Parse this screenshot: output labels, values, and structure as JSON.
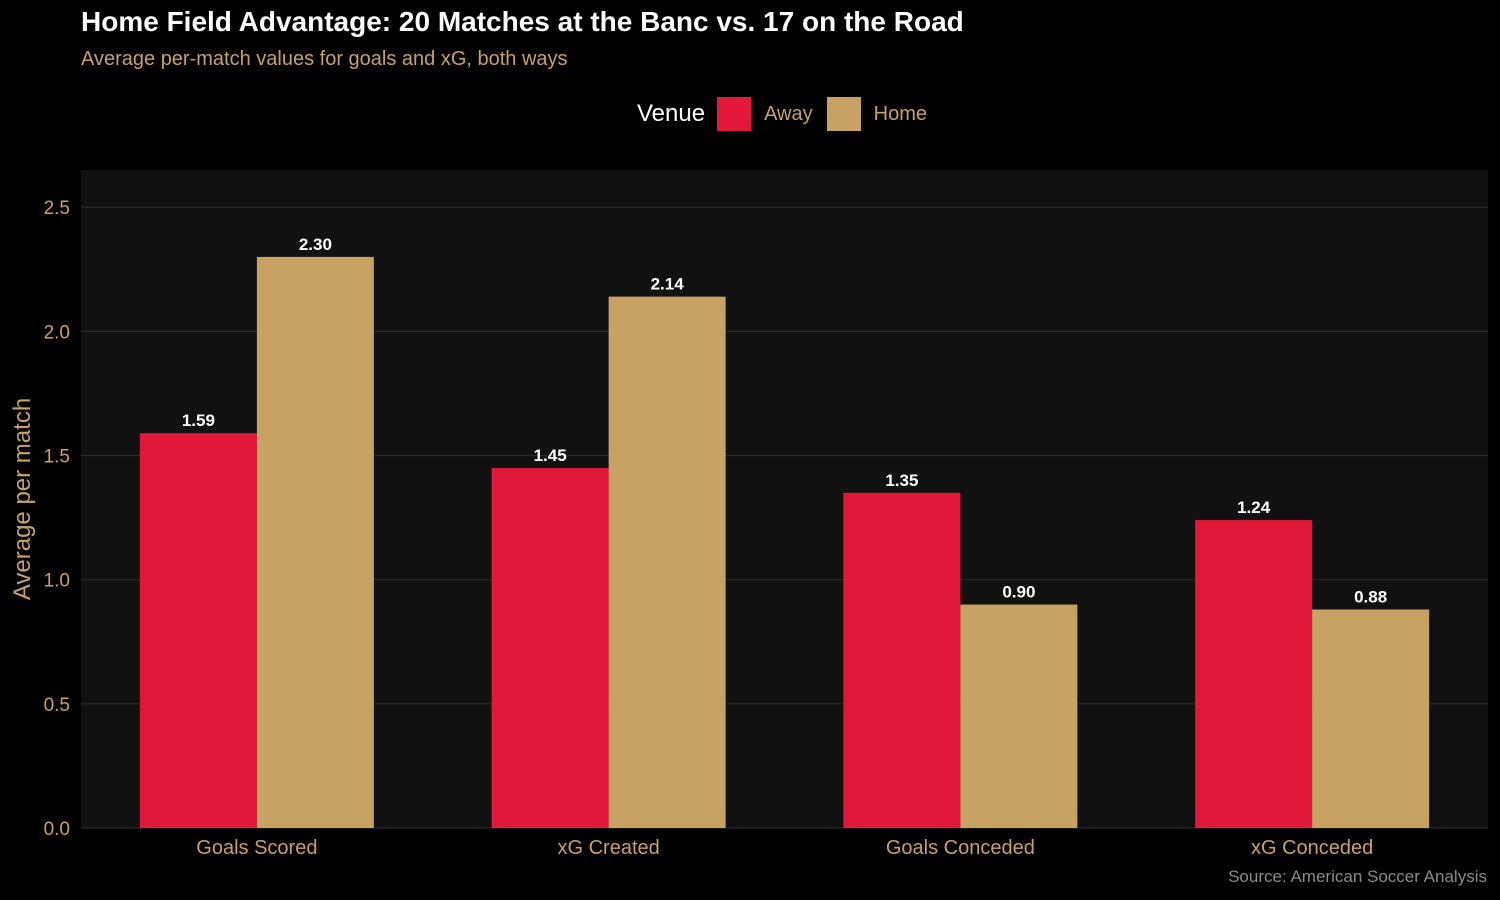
{
  "colors": {
    "background": "#000000",
    "panel": "#111111",
    "grid": "#2a2a2a",
    "away": "#e2183a",
    "home": "#c8a262",
    "gold_text": "#c8a262",
    "white_text": "#ffffff",
    "source_text": "#8a8a8a"
  },
  "chart_data": {
    "type": "bar",
    "title": "Home Field Advantage: 20 Matches at the Banc vs. 17 on the Road",
    "subtitle": "Average per-match values for goals and xG, both ways",
    "xlabel": "",
    "ylabel": "Average per match",
    "ylim": [
      0,
      2.65
    ],
    "yticks": [
      0.0,
      0.5,
      1.0,
      1.5,
      2.0,
      2.5
    ],
    "ytick_labels": [
      "0.0",
      "0.5",
      "1.0",
      "1.5",
      "2.0",
      "2.5"
    ],
    "grid": true,
    "legend": {
      "title": "Venue",
      "position": "top",
      "entries": [
        "Away",
        "Home"
      ]
    },
    "categories": [
      "Goals Scored",
      "xG Created",
      "Goals Conceded",
      "xG Conceded"
    ],
    "series": [
      {
        "name": "Away",
        "values": [
          1.59,
          1.45,
          1.35,
          1.24
        ],
        "labels": [
          "1.59",
          "1.45",
          "1.35",
          "1.24"
        ]
      },
      {
        "name": "Home",
        "values": [
          2.3,
          2.14,
          0.9,
          0.88
        ],
        "labels": [
          "2.30",
          "2.14",
          "0.90",
          "0.88"
        ]
      }
    ],
    "caption": "Source: American Soccer Analysis"
  }
}
